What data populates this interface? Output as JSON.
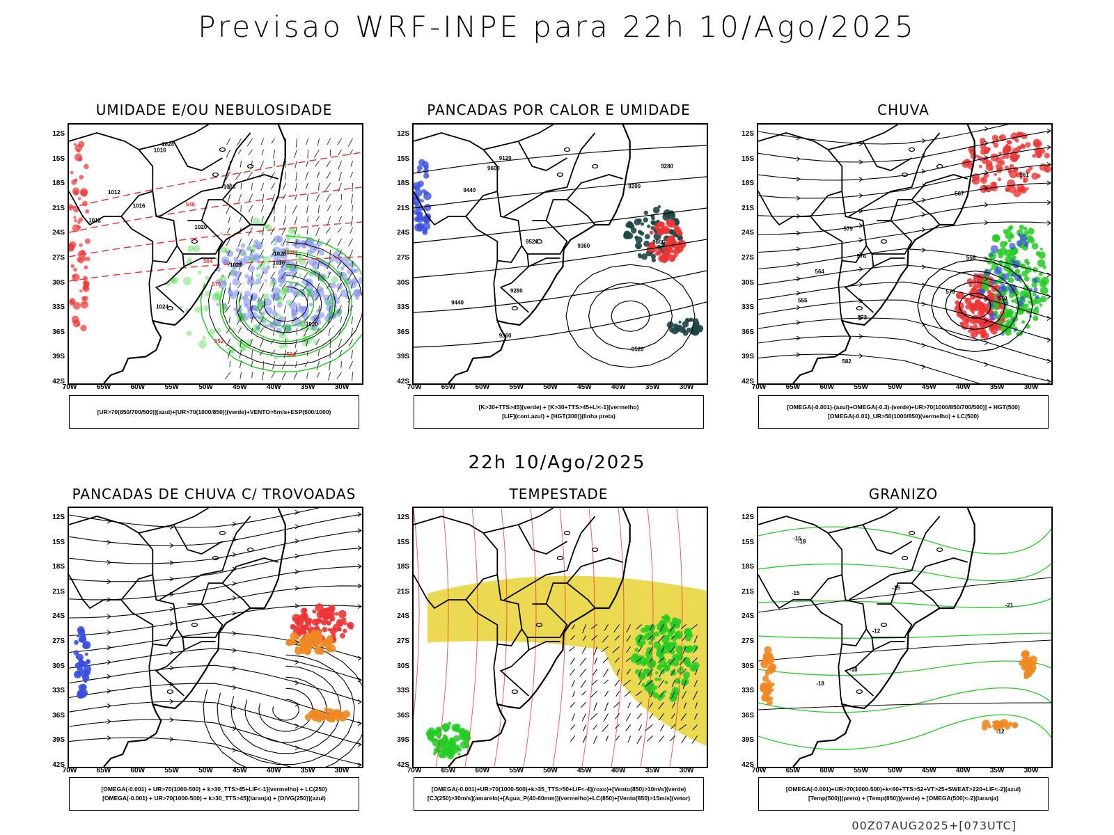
{
  "header": {
    "title": "Previsao WRF-INPE  para 22h 10/Ago/2025"
  },
  "mid_title": "22h 10/Ago/2025",
  "footer": "00Z07AUG2025+[073UTC]",
  "lat_labels": [
    "12S",
    "15S",
    "18S",
    "21S",
    "24S",
    "27S",
    "30S",
    "33S",
    "36S",
    "39S",
    "42S"
  ],
  "lon_labels": [
    "70W",
    "65W",
    "60W",
    "55W",
    "50W",
    "45W",
    "40W",
    "35W",
    "30W"
  ],
  "colors": {
    "blue": "#3a4fe0",
    "green": "#22cc22",
    "red": "#ee3333",
    "orange": "#ee8822",
    "yellow": "#e6d232",
    "teal": "#1e4646",
    "black": "#000000"
  },
  "panels": [
    {
      "title": "UMIDADE E/OU NEBULOSIDADE",
      "legend": [
        "[UR>70(850/700/500)](azul)+[UR>70(1000/850)](verde)+VENTO>5m/s+ESP(500/1000)"
      ],
      "contour_labels": [
        "1016",
        "1012",
        "1020",
        "1016",
        "1024",
        "1016",
        "1012",
        "1020",
        "1020",
        "1016",
        "1024",
        "1020",
        "564",
        "570",
        "576",
        "552",
        "546",
        "564"
      ]
    },
    {
      "title": "PANCADAS POR CALOR E UMIDADE",
      "legend": [
        "[K>30+TTS>45](verde) + [K>30+TTS>45+LI<-1](vermelho)",
        "[LIF](cont.azul) + [HGT(300)](linha preta)"
      ],
      "contour_labels": [
        "9600",
        "9600",
        "9520",
        "9520",
        "9440",
        "9440",
        "9360",
        "9360",
        "9280",
        "9280",
        "9200",
        "9120"
      ]
    },
    {
      "title": "CHUVA",
      "legend": [
        "[OMEGA(-0.001)-(azul)+OMEGA(-0.3)-(verde)+UR>70(1000/850/700/500)] + HGT(500)",
        "[OMEGA(-0.01)_UR>50(1000/850)(vermelho) + LC(500)"
      ],
      "contour_labels": [
        "582",
        "579",
        "576",
        "573",
        "570",
        "567",
        "564",
        "561",
        "558",
        "555",
        "579"
      ]
    },
    {
      "title": "PANCADAS DE CHUVA C/ TROVOADAS",
      "legend": [
        "[OMEGA(-0.001) + UR>70(1000-500) + k>30_TTS>45+LIF<-1](vermelho) + LC(250)",
        "[OMEGA(-0.001) + UR>70(1000-500) + k>30_TTS>45](laranja) + [DIVG(250)](azul)"
      ],
      "contour_labels": []
    },
    {
      "title": "TEMPESTADE",
      "legend": [
        "[OMEGA(-0.001)+UR>70(1000-500)+k>35_TTS>50+LIF<-4](roxo)+[Vento(850)>10m/s](verde)",
        "[CJ(250)>30m/s](amarelo)+[Agua_P(40-60mm)](vermelho)+LC(850)+[Vento(850)>15m/s](vetor)"
      ],
      "contour_labels": []
    },
    {
      "title": "GRANIZO",
      "legend": [
        "[OMEGA(-0.001)+UR>70(1000-500)+k<60+TTS>52+VT>25+SWEAT>220+LIF<-2](azul)",
        "[Temp(500)](preto) + [Temp(850)](verde) + [OMEGA(500)<-2](laranja)"
      ],
      "contour_labels": [
        "-12",
        "-15",
        "-18",
        "-21",
        "-18",
        "-15",
        "-12",
        "-15",
        "-18"
      ]
    }
  ]
}
